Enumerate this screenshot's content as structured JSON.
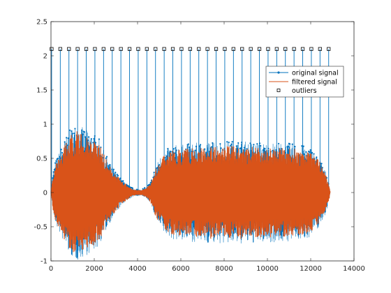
{
  "chart_data": {
    "type": "line",
    "title": "",
    "xlabel": "",
    "ylabel": "",
    "xlim": [
      0,
      14000
    ],
    "ylim": [
      -1,
      2.5
    ],
    "x_ticks": [
      0,
      2000,
      4000,
      6000,
      8000,
      10000,
      12000,
      14000
    ],
    "x_tick_labels": [
      "0",
      "2000",
      "4000",
      "6000",
      "8000",
      "10000",
      "12000",
      "14000"
    ],
    "y_ticks": [
      -1,
      -0.5,
      0,
      0.5,
      1,
      1.5,
      2,
      2.5
    ],
    "y_tick_labels": [
      "-1",
      "-0.5",
      "0",
      "0.5",
      "1",
      "1.5",
      "2",
      "2.5"
    ],
    "grid": false,
    "box": true,
    "legend_position": "top-right",
    "colors": {
      "original": "#0072BD",
      "filtered": "#D95319",
      "outliers": "#000000"
    },
    "series": [
      {
        "name": "original signal",
        "marker": "dot",
        "color": "#0072BD",
        "envelope": {
          "x": [
            0,
            100,
            200,
            400,
            600,
            800,
            1000,
            1200,
            1400,
            1600,
            1800,
            2000,
            2200,
            2400,
            2600,
            2800,
            3000,
            3200,
            3400,
            3600,
            3800,
            4000,
            4200,
            4400,
            4600,
            4800,
            5000,
            5200,
            5400,
            5600,
            5800,
            6000,
            6500,
            7000,
            7500,
            8000,
            8500,
            9000,
            9500,
            10000,
            10500,
            11000,
            11500,
            12000,
            12300,
            12500,
            12700,
            12850,
            12900
          ],
          "upper": [
            0,
            0.3,
            0.45,
            0.6,
            0.75,
            0.88,
            0.97,
            1.0,
            0.97,
            0.92,
            0.9,
            0.85,
            0.8,
            0.65,
            0.52,
            0.4,
            0.3,
            0.22,
            0.15,
            0.1,
            0.06,
            0.05,
            0.05,
            0.08,
            0.15,
            0.35,
            0.5,
            0.6,
            0.65,
            0.68,
            0.7,
            0.7,
            0.72,
            0.74,
            0.75,
            0.75,
            0.76,
            0.75,
            0.74,
            0.73,
            0.73,
            0.72,
            0.7,
            0.65,
            0.55,
            0.45,
            0.3,
            0.12,
            0
          ]
        }
      },
      {
        "name": "filtered signal",
        "color": "#D95319",
        "envelope": {
          "x": [
            0,
            100,
            200,
            400,
            600,
            800,
            1000,
            1200,
            1400,
            1600,
            1800,
            2000,
            2200,
            2400,
            2600,
            2800,
            3000,
            3200,
            3400,
            3600,
            3800,
            4000,
            4200,
            4400,
            4600,
            4800,
            5000,
            5200,
            5400,
            5600,
            5800,
            6000,
            6500,
            7000,
            7500,
            8000,
            8500,
            9000,
            9500,
            10000,
            10500,
            11000,
            11500,
            12000,
            12300,
            12500,
            12700,
            12850,
            12900
          ],
          "upper": [
            0,
            0.27,
            0.4,
            0.54,
            0.68,
            0.79,
            0.87,
            0.9,
            0.87,
            0.83,
            0.81,
            0.77,
            0.72,
            0.59,
            0.47,
            0.36,
            0.27,
            0.2,
            0.14,
            0.09,
            0.05,
            0.04,
            0.04,
            0.07,
            0.14,
            0.32,
            0.45,
            0.54,
            0.59,
            0.61,
            0.63,
            0.63,
            0.65,
            0.67,
            0.68,
            0.68,
            0.68,
            0.68,
            0.67,
            0.66,
            0.66,
            0.65,
            0.63,
            0.59,
            0.5,
            0.41,
            0.27,
            0.11,
            0
          ]
        }
      },
      {
        "name": "outliers",
        "marker": "square",
        "color": "#000000",
        "x": [
          30,
          430,
          830,
          1230,
          1630,
          2030,
          2430,
          2830,
          3230,
          3630,
          4030,
          4430,
          4830,
          5230,
          5630,
          6030,
          6430,
          6830,
          7230,
          7630,
          8030,
          8430,
          8830,
          9230,
          9630,
          10030,
          10430,
          10830,
          11230,
          11630,
          12030,
          12430,
          12830
        ],
        "y": [
          2.1,
          2.1,
          2.1,
          2.1,
          2.1,
          2.1,
          2.1,
          2.1,
          2.1,
          2.1,
          2.1,
          2.1,
          2.1,
          2.1,
          2.1,
          2.1,
          2.1,
          2.1,
          2.1,
          2.1,
          2.1,
          2.1,
          2.1,
          2.1,
          2.1,
          2.1,
          2.1,
          2.1,
          2.1,
          2.1,
          2.1,
          2.1,
          2.1
        ]
      }
    ]
  }
}
